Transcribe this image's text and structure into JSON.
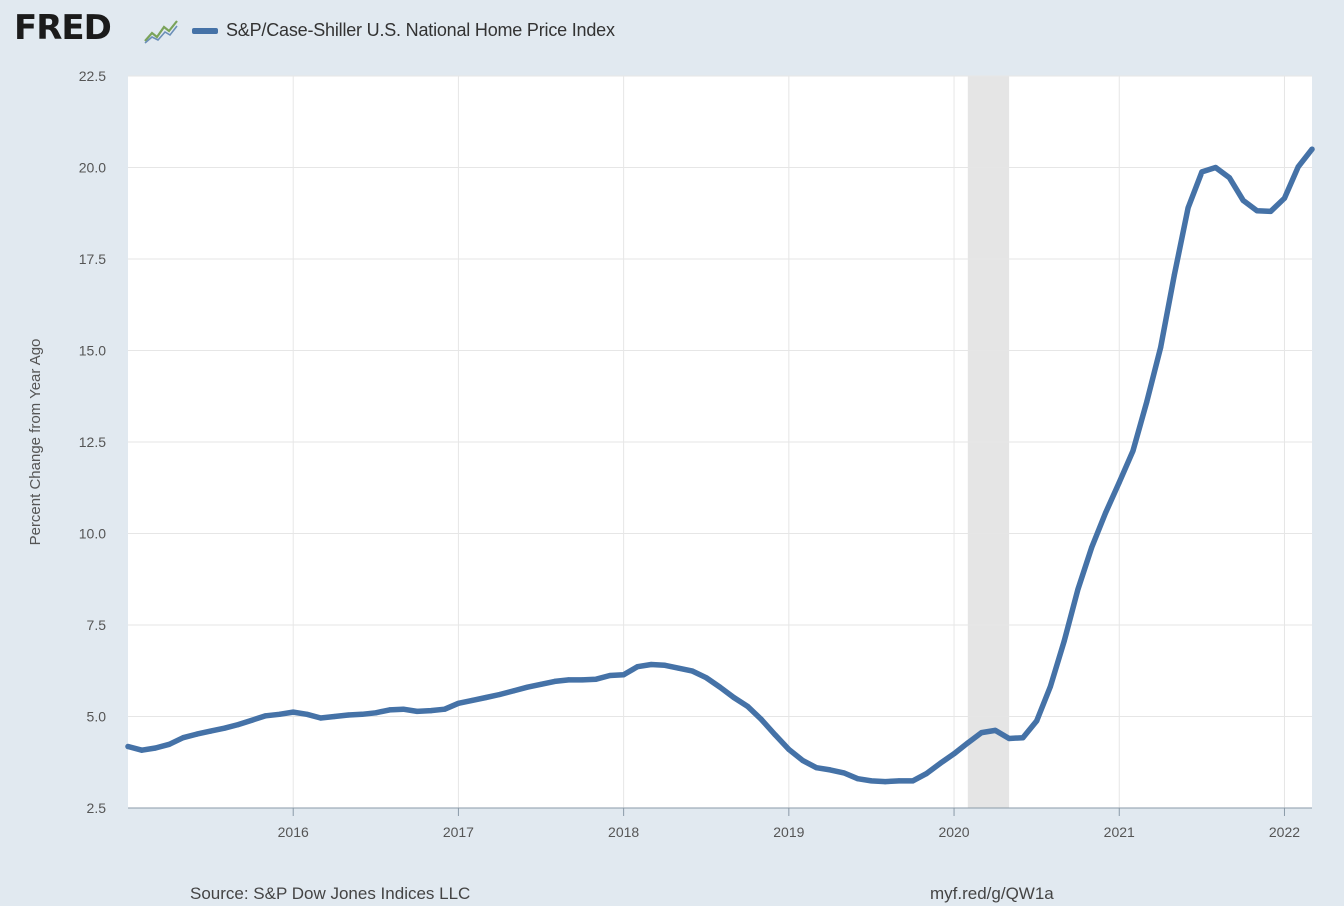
{
  "header": {
    "logo_text": "FRED",
    "logo_icon": "line-chart-icon",
    "series_label": "S&P/Case-Shiller U.S. National Home Price Index"
  },
  "footer": {
    "source": "Source: S&P Dow Jones Indices LLC",
    "link": "myf.red/g/QW1a"
  },
  "colors": {
    "line": "#4572a7",
    "background": "#e1e9f0",
    "plot": "#ffffff",
    "grid": "#e6e6e6",
    "recession": "#e5e5e5"
  },
  "chart_data": {
    "type": "line",
    "title": "",
    "xlabel": "",
    "ylabel": "Percent Change from Year Ago",
    "ylim": [
      2.5,
      22.5
    ],
    "xlim": [
      "2015-01",
      "2022-03"
    ],
    "yticks": [
      "2.5",
      "5.0",
      "7.5",
      "10.0",
      "12.5",
      "15.0",
      "17.5",
      "20.0",
      "22.5"
    ],
    "xticks": [
      "2016",
      "2017",
      "2018",
      "2019",
      "2020",
      "2021",
      "2022"
    ],
    "grid": true,
    "legend": "top-left",
    "recessions": [
      {
        "start": "2020-02",
        "end": "2020-04"
      }
    ],
    "series": [
      {
        "name": "S&P/Case-Shiller U.S. National Home Price Index",
        "x": [
          "2015-01",
          "2015-02",
          "2015-03",
          "2015-04",
          "2015-05",
          "2015-06",
          "2015-07",
          "2015-08",
          "2015-09",
          "2015-10",
          "2015-11",
          "2015-12",
          "2016-01",
          "2016-02",
          "2016-03",
          "2016-04",
          "2016-05",
          "2016-06",
          "2016-07",
          "2016-08",
          "2016-09",
          "2016-10",
          "2016-11",
          "2016-12",
          "2017-01",
          "2017-02",
          "2017-03",
          "2017-04",
          "2017-05",
          "2017-06",
          "2017-07",
          "2017-08",
          "2017-09",
          "2017-10",
          "2017-11",
          "2017-12",
          "2018-01",
          "2018-02",
          "2018-03",
          "2018-04",
          "2018-05",
          "2018-06",
          "2018-07",
          "2018-08",
          "2018-09",
          "2018-10",
          "2018-11",
          "2018-12",
          "2019-01",
          "2019-02",
          "2019-03",
          "2019-04",
          "2019-05",
          "2019-06",
          "2019-07",
          "2019-08",
          "2019-09",
          "2019-10",
          "2019-11",
          "2019-12",
          "2020-01",
          "2020-02",
          "2020-03",
          "2020-04",
          "2020-05",
          "2020-06",
          "2020-07",
          "2020-08",
          "2020-09",
          "2020-10",
          "2020-11",
          "2020-12",
          "2021-01",
          "2021-02",
          "2021-03",
          "2021-04",
          "2021-05",
          "2021-06",
          "2021-07",
          "2021-08",
          "2021-09",
          "2021-10",
          "2021-11",
          "2021-12",
          "2022-01",
          "2022-02",
          "2022-03"
        ],
        "values": [
          4.18,
          4.08,
          4.14,
          4.24,
          4.42,
          4.52,
          4.6,
          4.68,
          4.78,
          4.9,
          5.02,
          5.06,
          5.12,
          5.06,
          4.96,
          5.0,
          5.04,
          5.06,
          5.1,
          5.18,
          5.2,
          5.14,
          5.16,
          5.2,
          5.36,
          5.44,
          5.52,
          5.6,
          5.7,
          5.8,
          5.88,
          5.96,
          6.0,
          6.0,
          6.02,
          6.12,
          6.14,
          6.36,
          6.42,
          6.4,
          6.32,
          6.24,
          6.06,
          5.8,
          5.52,
          5.28,
          4.92,
          4.5,
          4.1,
          3.8,
          3.6,
          3.54,
          3.46,
          3.3,
          3.24,
          3.22,
          3.24,
          3.24,
          3.44,
          3.72,
          3.98,
          4.28,
          4.56,
          4.62,
          4.4,
          4.42,
          4.88,
          5.82,
          7.06,
          8.48,
          9.62,
          10.56,
          11.4,
          12.26,
          13.6,
          15.08,
          17.06,
          18.9,
          19.88,
          20.0,
          19.72,
          19.1,
          18.82,
          18.8,
          19.16,
          20.02,
          20.5
        ]
      }
    ]
  }
}
